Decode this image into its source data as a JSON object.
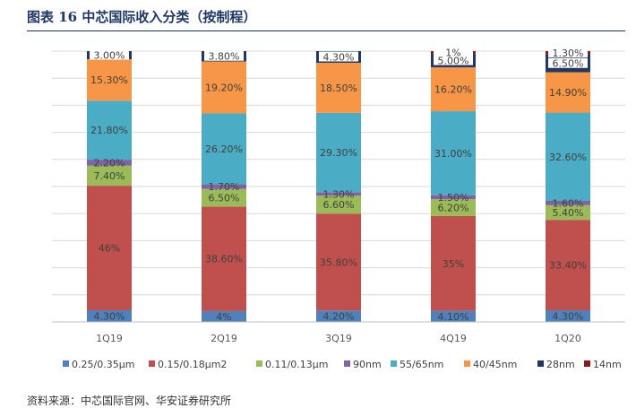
{
  "figure": {
    "title": "图表 16  中芯国际收入分类（按制程）",
    "source": "资料来源：中芯国际官网、华安证券研究所"
  },
  "chart_data": {
    "type": "bar",
    "stacked": true,
    "percent_stacked": true,
    "ylim": [
      0,
      100
    ],
    "grid": true,
    "legend_position": "bottom",
    "categories": [
      "1Q19",
      "2Q19",
      "3Q19",
      "4Q19",
      "1Q20"
    ],
    "series": [
      {
        "name": "0.25/0.35μm",
        "color": "#4f81bd",
        "values": [
          4.3,
          4,
          4.2,
          4.1,
          4.3
        ],
        "labels": [
          "4.30%",
          "4%",
          "4.20%",
          "4.10%",
          "4.30%"
        ]
      },
      {
        "name": "0.15/0.18μm2",
        "color": "#c0504d",
        "values": [
          46,
          38.6,
          35.8,
          35,
          33.4
        ],
        "labels": [
          "46%",
          "38.60%",
          "35.80%",
          "35%",
          "33.40%"
        ]
      },
      {
        "name": "0.11/0.13μm",
        "color": "#9bbb59",
        "values": [
          7.4,
          6.5,
          6.6,
          6.2,
          5.4
        ],
        "labels": [
          "7.40%",
          "6.50%",
          "6.60%",
          "6.20%",
          "5.40%"
        ]
      },
      {
        "name": "90nm",
        "color": "#8064a2",
        "values": [
          2.2,
          1.7,
          1.3,
          1.5,
          1.6
        ],
        "labels": [
          "2.20%",
          "1.70%",
          "1.30%",
          "1.50%",
          "1.60%"
        ]
      },
      {
        "name": "55/65nm",
        "color": "#4bacc6",
        "values": [
          21.8,
          26.2,
          29.3,
          31,
          32.6
        ],
        "labels": [
          "21.80%",
          "26.20%",
          "29.30%",
          "31.00%",
          "32.60%"
        ]
      },
      {
        "name": "40/45nm",
        "color": "#f79646",
        "values": [
          15.3,
          19.2,
          18.5,
          16.2,
          14.9
        ],
        "labels": [
          "15.30%",
          "19.20%",
          "18.50%",
          "16.20%",
          "14.90%"
        ]
      },
      {
        "name": "28nm",
        "color": "#1f3864",
        "values": [
          3,
          3.8,
          4.3,
          5,
          6.5
        ],
        "labels": [
          "3.00%",
          "3.80%",
          "4.30%",
          "5.00%",
          "6.50%"
        ]
      },
      {
        "name": "14nm",
        "color": "#8b1a1a",
        "values": [
          0,
          0,
          0,
          1,
          1.3
        ],
        "labels": [
          "",
          "",
          "",
          "1%",
          "1.30%"
        ]
      }
    ]
  }
}
